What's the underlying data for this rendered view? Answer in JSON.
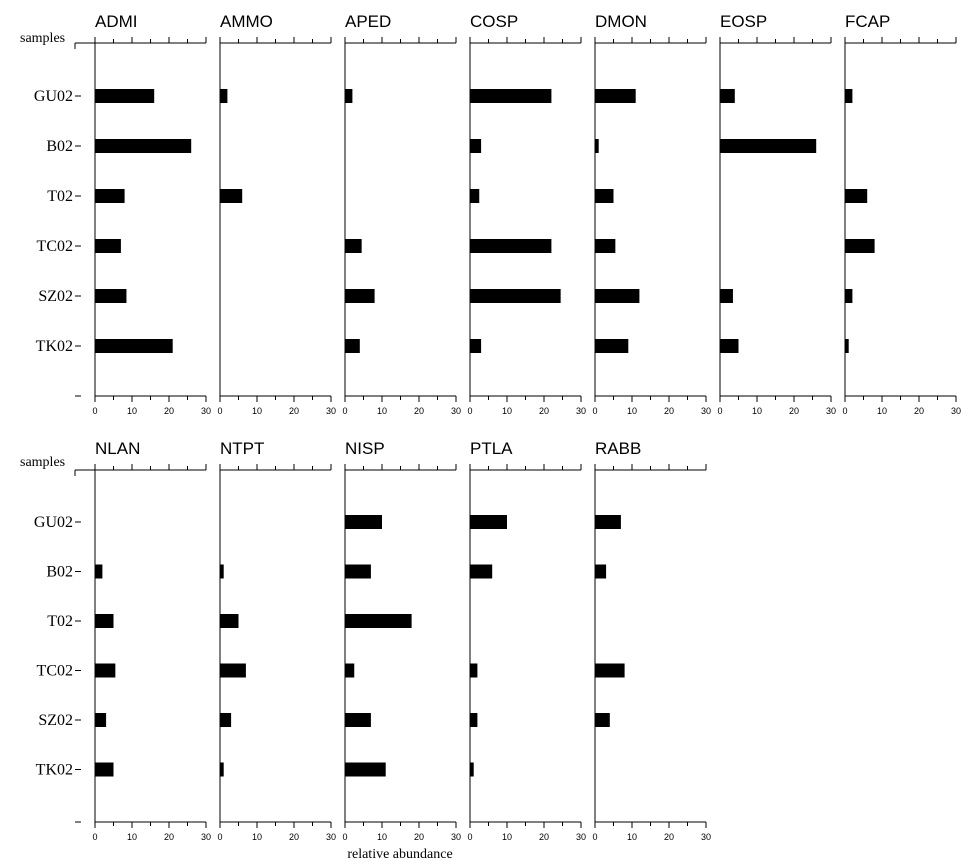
{
  "chart_data": {
    "type": "bar",
    "orientation": "horizontal",
    "y_axis_label": "samples",
    "x_axis_label": "relative abundance",
    "samples": [
      "GU02",
      "B02",
      "T02",
      "TC02",
      "SZ02",
      "TK02"
    ],
    "xlim": [
      0,
      30
    ],
    "xticks": [
      0,
      10,
      20,
      30
    ],
    "panels": [
      {
        "name": "ADMI",
        "values": [
          16,
          26,
          8,
          7,
          8.5,
          21
        ]
      },
      {
        "name": "AMMO",
        "values": [
          2,
          0,
          6,
          0,
          0,
          0
        ]
      },
      {
        "name": "APED",
        "values": [
          2,
          0,
          0,
          4.5,
          8,
          4
        ]
      },
      {
        "name": "COSP",
        "values": [
          22,
          3,
          2.5,
          22,
          24.5,
          3
        ]
      },
      {
        "name": "DMON",
        "values": [
          11,
          1,
          5,
          5.5,
          12,
          9
        ]
      },
      {
        "name": "EOSP",
        "values": [
          4,
          26,
          0,
          0,
          3.5,
          5
        ]
      },
      {
        "name": "FCAP",
        "values": [
          2,
          0,
          6,
          8,
          2,
          1
        ]
      },
      {
        "name": "NLAN",
        "values": [
          0,
          2,
          5,
          5.5,
          3,
          5
        ]
      },
      {
        "name": "NTPT",
        "values": [
          0,
          1,
          5,
          7,
          3,
          1
        ]
      },
      {
        "name": "NISP",
        "values": [
          10,
          7,
          18,
          2.5,
          7,
          11
        ]
      },
      {
        "name": "PTLA",
        "values": [
          10,
          6,
          0,
          2,
          2,
          1
        ]
      },
      {
        "name": "RABB",
        "values": [
          7,
          3,
          0,
          8,
          4,
          0
        ]
      }
    ]
  }
}
